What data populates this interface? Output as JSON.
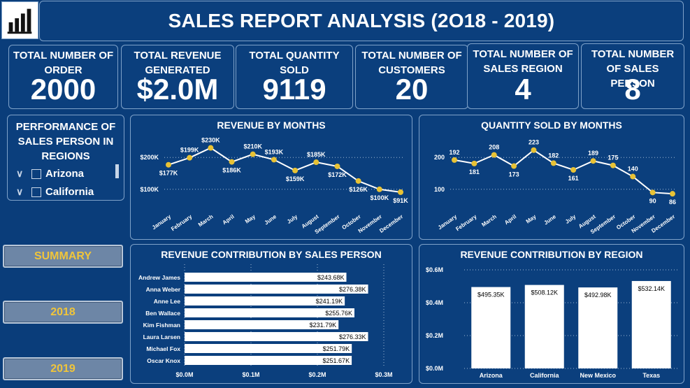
{
  "header": {
    "title": "SALES REPORT ANALYSIS (2O18 - 2019)"
  },
  "kpis": [
    {
      "label": "TOTAL NUMBER OF ORDER",
      "value": "2000"
    },
    {
      "label": "TOTAL REVENUE GENERATED",
      "value": "$2.0M"
    },
    {
      "label": "TOTAL QUANTITY SOLD",
      "value": "9119"
    },
    {
      "label": "TOTAL NUMBER OF CUSTOMERS",
      "value": "20"
    },
    {
      "label": "TOTAL NUMBER OF SALES REGION",
      "value": "4"
    },
    {
      "label": "TOTAL NUMBER OF SALES PERSON",
      "value": "8"
    }
  ],
  "slicer": {
    "title": "PERFORMANCE OF SALES PERSON IN REGIONS",
    "items": [
      "Arizona",
      "California"
    ]
  },
  "nav": {
    "summary": "SUMMARY",
    "y2018": "2018",
    "y2019": "2019"
  },
  "colors": {
    "background": "#0a3d7a",
    "accent": "#e8c235",
    "line": "#ffffff",
    "button_text": "#f0c53a"
  },
  "chart_data": [
    {
      "type": "line",
      "title": "REVENUE BY MONTHS",
      "categories": [
        "January",
        "February",
        "March",
        "April",
        "May",
        "June",
        "July",
        "August",
        "September",
        "October",
        "November",
        "December"
      ],
      "values": [
        177,
        199,
        230,
        186,
        210,
        193,
        159,
        185,
        172,
        126,
        100,
        91
      ],
      "labels": [
        "$177K",
        "$199K",
        "$230K",
        "$186K",
        "$210K",
        "$193K",
        "$159K",
        "$185K",
        "$172K",
        "$126K",
        "$100K",
        "$91K"
      ],
      "ytick_labels": [
        "$100K",
        "$200K"
      ],
      "yticks": [
        100,
        200
      ],
      "ylim": [
        60,
        240
      ],
      "grid": true
    },
    {
      "type": "line",
      "title": "QUANTITY SOLD BY MONTHS",
      "categories": [
        "January",
        "February",
        "March",
        "April",
        "May",
        "June",
        "July",
        "August",
        "September",
        "October",
        "November",
        "December"
      ],
      "values": [
        192,
        181,
        208,
        173,
        223,
        182,
        161,
        189,
        175,
        140,
        90,
        86
      ],
      "labels": [
        "192",
        "181",
        "208",
        "173",
        "223",
        "182",
        "161",
        "189",
        "175",
        "140",
        "90",
        "86"
      ],
      "ytick_labels": [
        "100",
        "200"
      ],
      "yticks": [
        100,
        200
      ],
      "ylim": [
        60,
        240
      ],
      "grid": true
    },
    {
      "type": "bar",
      "orientation": "horizontal",
      "title": "REVENUE CONTRIBUTION BY SALES PERSON",
      "categories": [
        "Andrew James",
        "Anna Weber",
        "Anne Lee",
        "Ben Wallace",
        "Kim Fishman",
        "Laura Larsen",
        "Michael Fox",
        "Oscar Knox"
      ],
      "values": [
        243.68,
        276.38,
        241.19,
        255.76,
        231.79,
        276.33,
        251.79,
        251.67
      ],
      "labels": [
        "$243.68K",
        "$276.38K",
        "$241.19K",
        "$255.76K",
        "$231.79K",
        "$276.33K",
        "$251.79K",
        "$251.67K"
      ],
      "xtick_labels": [
        "$0.0M",
        "$0.1M",
        "$0.2M",
        "$0.3M"
      ],
      "xticks": [
        0,
        100,
        200,
        300
      ],
      "xlim": [
        0,
        300
      ],
      "grid": true
    },
    {
      "type": "bar",
      "title": "REVENUE CONTRIBUTION BY REGION",
      "categories": [
        "Arizona",
        "California",
        "New Mexico",
        "Texas"
      ],
      "values": [
        495.35,
        508.12,
        492.98,
        532.14
      ],
      "labels": [
        "$495.35K",
        "$508.12K",
        "$492.98K",
        "$532.14K"
      ],
      "ytick_labels": [
        "$0.0M",
        "$0.2M",
        "$0.4M",
        "$0.6M"
      ],
      "yticks": [
        0,
        200,
        400,
        600
      ],
      "ylim": [
        0,
        600
      ],
      "grid": true
    }
  ]
}
